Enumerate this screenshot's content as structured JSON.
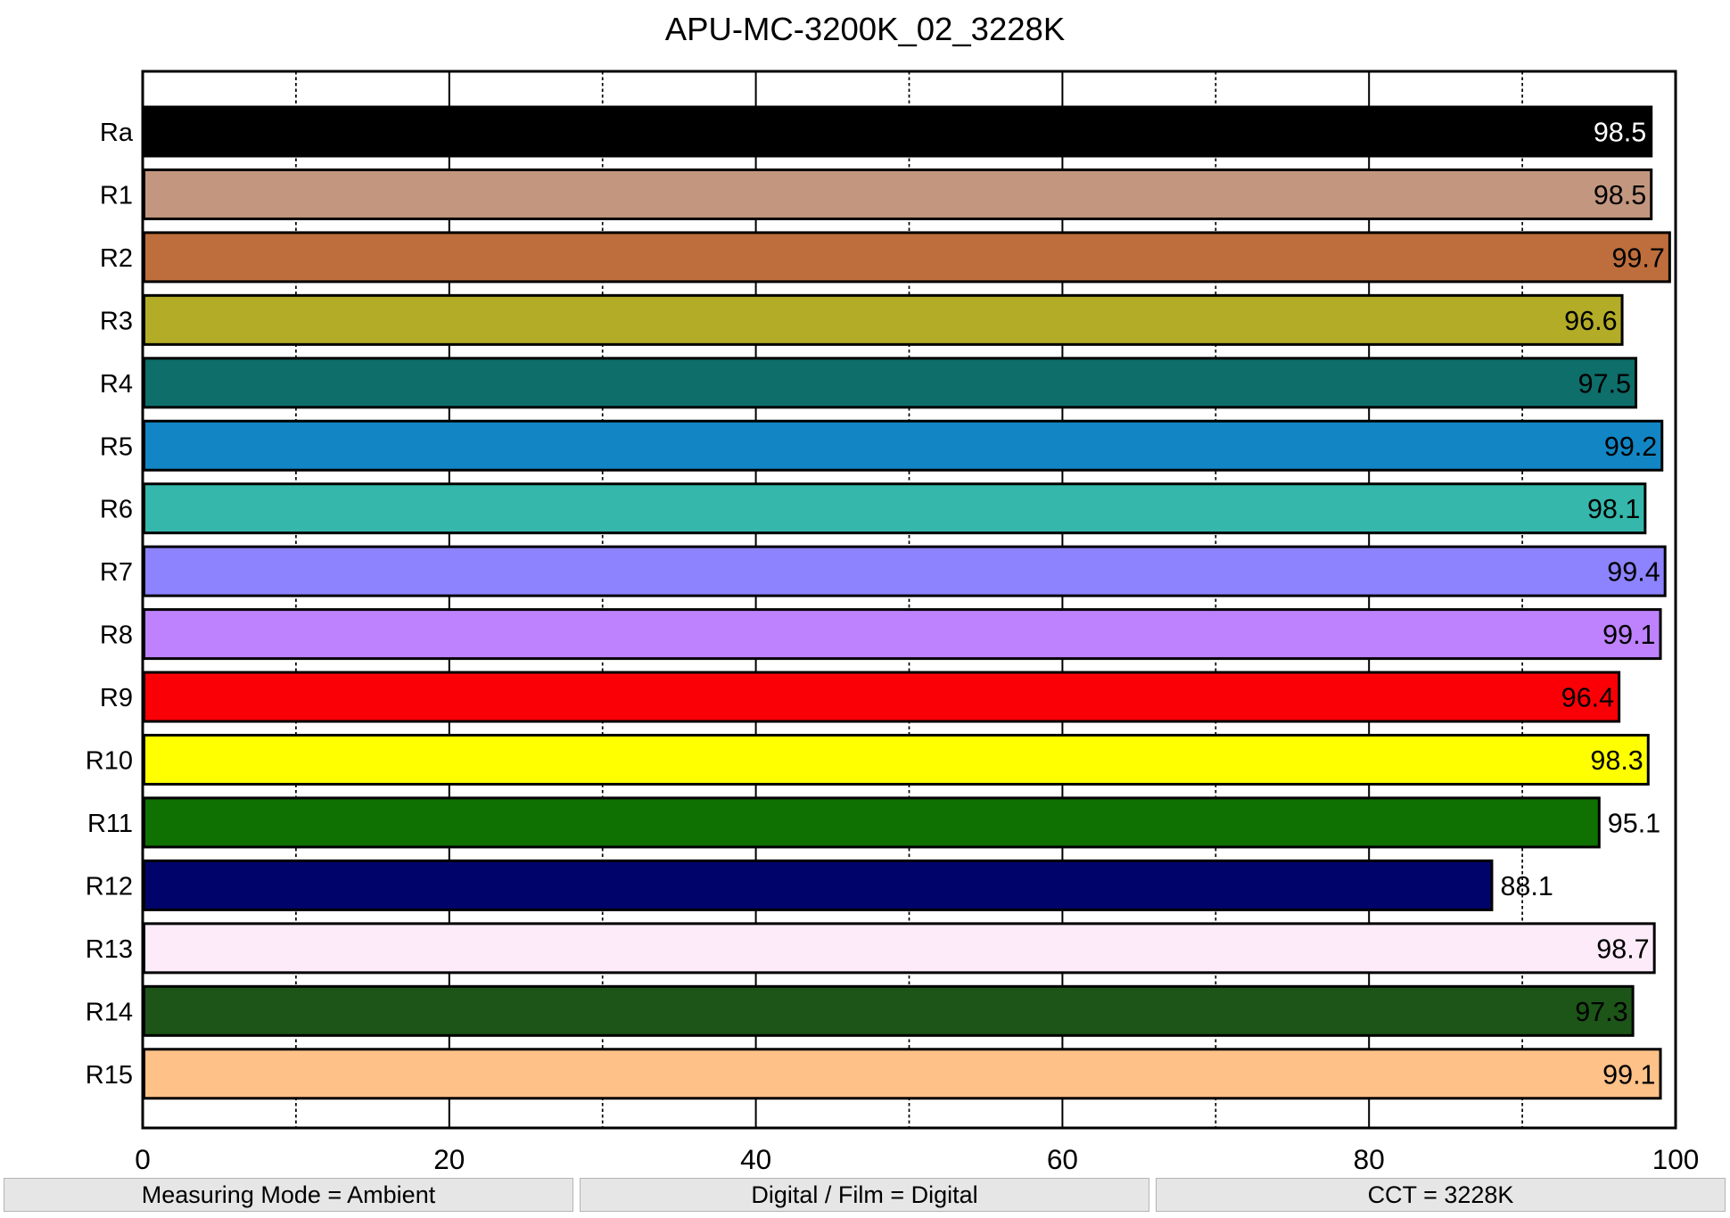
{
  "chart_data": {
    "type": "bar",
    "orientation": "horizontal",
    "title": "APU-MC-3200K_02_3228K",
    "categories": [
      "Ra",
      "R1",
      "R2",
      "R3",
      "R4",
      "R5",
      "R6",
      "R7",
      "R8",
      "R9",
      "R10",
      "R11",
      "R12",
      "R13",
      "R14",
      "R15"
    ],
    "values": [
      98.5,
      98.5,
      99.7,
      96.6,
      97.5,
      99.2,
      98.1,
      99.4,
      99.1,
      96.4,
      98.3,
      95.1,
      88.1,
      98.7,
      97.3,
      99.1
    ],
    "bar_colors": [
      "#000000",
      "#C3977F",
      "#BE6E3C",
      "#B2AC27",
      "#0D6E6A",
      "#1286C4",
      "#35B7AB",
      "#8D83FF",
      "#BE82FF",
      "#FA0006",
      "#FFFF00",
      "#0E7101",
      "#00046A",
      "#FDEBF9",
      "#1C5517",
      "#FEC188"
    ],
    "value_label_positions": [
      "inside",
      "inside",
      "inside",
      "inside",
      "inside",
      "inside",
      "inside",
      "inside",
      "inside",
      "inside",
      "inside",
      "outside",
      "outside",
      "inside",
      "inside",
      "inside"
    ],
    "value_label_colors": [
      "#ffffff",
      "#000000",
      "#000000",
      "#000000",
      "#000000",
      "#000000",
      "#000000",
      "#000000",
      "#000000",
      "#000000",
      "#000000",
      "#000000",
      "#000000",
      "#000000",
      "#000000",
      "#000000"
    ],
    "xlim": [
      0,
      100
    ],
    "x_major_ticks": [
      0,
      20,
      40,
      60,
      80,
      100
    ],
    "x_minor_ticks": [
      10,
      30,
      50,
      70,
      90
    ],
    "grid": "major-solid-minor-dotted",
    "legend": "none",
    "bar_edge_color": "#000000",
    "xlabel": "",
    "ylabel": ""
  },
  "footer": {
    "items": [
      "Measuring Mode = Ambient",
      "Digital / Film = Digital",
      "CCT = 3228K"
    ]
  },
  "colors": {
    "background": "#ffffff",
    "frame": "#000000",
    "grid": "#000000",
    "footer_background": "#e6e6e6",
    "footer_border": "#b4b4b4",
    "text": "#000000"
  }
}
